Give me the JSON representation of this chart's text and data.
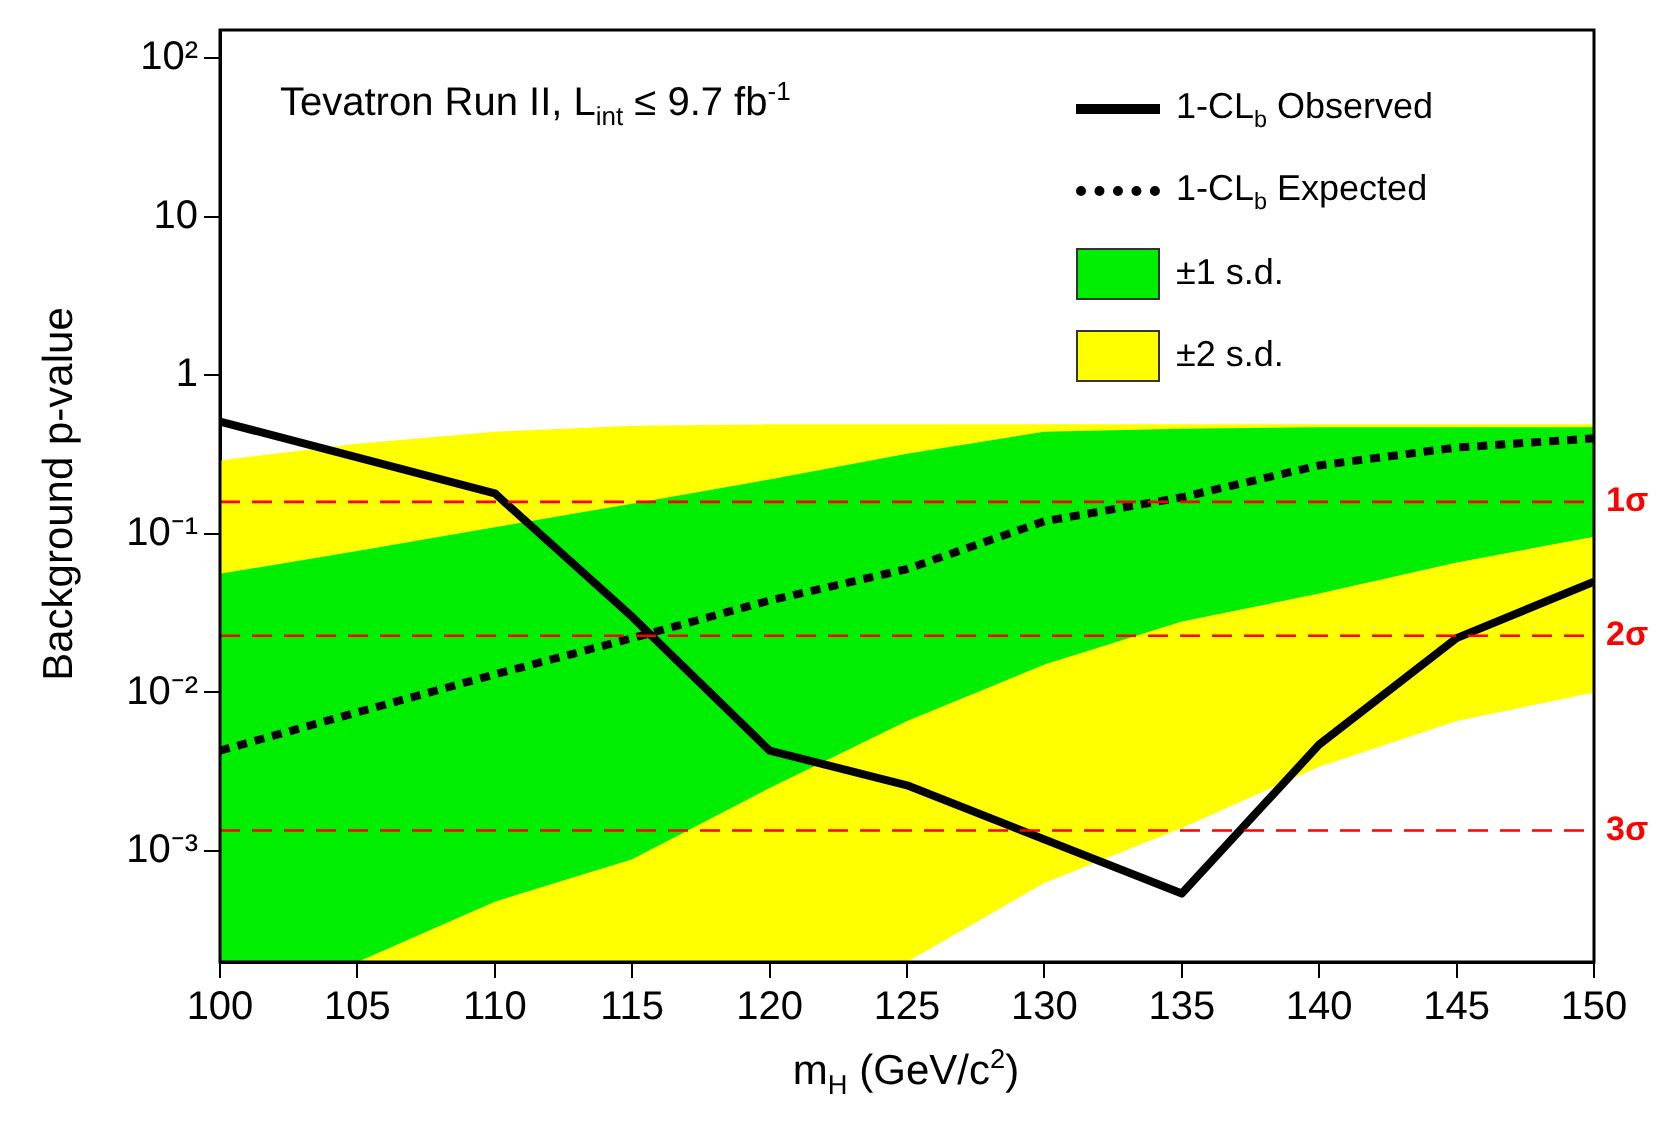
{
  "chart_data": {
    "type": "line",
    "xlabel": "m$_{H}$ (GeV/c$^{2}$)",
    "ylabel": "Background p-value",
    "annotations": [
      "Tevatron Run II, L$_{int}$ ≤ 9.7 fb$^{-1}$"
    ],
    "log": "y",
    "grid": false,
    "legend": "top right",
    "marker": "none",
    "xlim": [
      100,
      150
    ],
    "xticks": [
      100,
      105,
      110,
      115,
      120,
      125,
      130,
      135,
      140,
      145,
      150
    ],
    "ylim": [
      0.0002,
      150
    ],
    "yticks": [
      {
        "value": 0.001,
        "label": "10⁻³"
      },
      {
        "value": 0.01,
        "label": "10⁻²"
      },
      {
        "value": 0.1,
        "label": "10⁻¹"
      },
      1,
      10,
      {
        "value": 100,
        "label": "10²"
      }
    ],
    "ref_lines": [
      {
        "axis": "y",
        "value": 0.159,
        "label": "1σ",
        "color": "#ff0000",
        "line_style": "dashed"
      },
      {
        "axis": "y",
        "value": 0.0228,
        "label": "2σ",
        "color": "#ff0000",
        "line_style": "dashed"
      },
      {
        "axis": "y",
        "value": 0.00135,
        "label": "3σ",
        "color": "#ff0000",
        "line_style": "dashed"
      }
    ],
    "series": [
      {
        "name": "1-CL$_{b}$ Observed",
        "type": "line",
        "color": "#000000",
        "line_style": "solid",
        "x": [
          100,
          110,
          115,
          120,
          125,
          135,
          140,
          145,
          150
        ],
        "values": [
          0.51,
          0.18,
          0.03,
          0.0043,
          0.0026,
          0.00054,
          0.0047,
          0.022,
          0.05
        ]
      },
      {
        "name": "1-CL$_{b}$ Expected",
        "type": "line",
        "color": "#000000",
        "line_style": "dotted",
        "x": [
          100,
          105,
          110,
          115,
          120,
          125,
          130,
          135,
          140,
          145,
          150
        ],
        "values": [
          0.0043,
          0.0075,
          0.013,
          0.022,
          0.038,
          0.06,
          0.12,
          0.17,
          0.27,
          0.35,
          0.4
        ]
      },
      {
        "name": "±1 s.d.",
        "type": "line",
        "color": "#00ee00",
        "x": [
          100,
          105,
          110,
          115,
          120,
          125,
          130,
          135,
          140,
          145,
          150
        ],
        "values": [
          null,
          null,
          null,
          null,
          null,
          null,
          null,
          null,
          null,
          null,
          null
        ],
        "lower": [
          0.0002,
          0.0002,
          0.00048,
          0.00089,
          0.0025,
          0.0066,
          0.015,
          0.028,
          0.042,
          0.066,
          0.096
        ],
        "upper": [
          0.056,
          0.078,
          0.11,
          0.155,
          0.22,
          0.32,
          0.44,
          0.46,
          0.47,
          0.47,
          0.47
        ]
      },
      {
        "name": "±2 s.d.",
        "type": "line",
        "color": "#ffff00",
        "x": [
          100,
          105,
          110,
          115,
          120,
          125,
          130,
          135,
          140,
          145,
          150
        ],
        "values": [
          null,
          null,
          null,
          null,
          null,
          null,
          null,
          null,
          null,
          null,
          null
        ],
        "lower": [
          0.0002,
          0.0002,
          0.0002,
          0.0002,
          0.0002,
          0.0002,
          0.00063,
          0.0014,
          0.0034,
          0.0066,
          0.01
        ],
        "upper": [
          0.29,
          0.37,
          0.44,
          0.48,
          0.49,
          0.49,
          0.49,
          0.49,
          0.49,
          0.49,
          0.49
        ]
      }
    ]
  }
}
